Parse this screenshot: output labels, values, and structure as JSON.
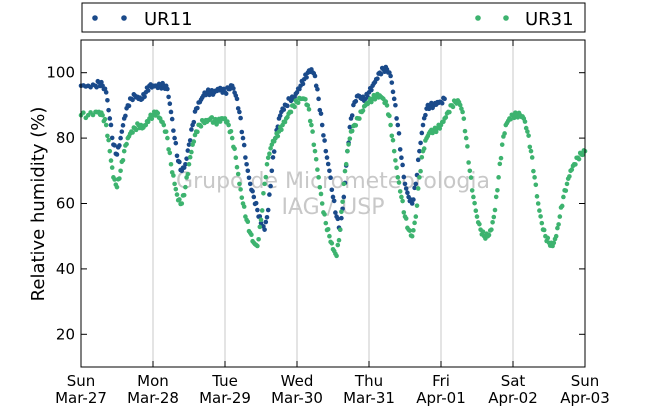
{
  "chart_data": {
    "type": "scatter",
    "ylabel": "Relative humidity (%)",
    "xlabel": "",
    "ylim": [
      10,
      110
    ],
    "yticks": [
      20,
      40,
      60,
      80,
      100
    ],
    "x_ticks": [
      {
        "day": "Sun",
        "date": "Mar-27"
      },
      {
        "day": "Mon",
        "date": "Mar-28"
      },
      {
        "day": "Tue",
        "date": "Mar-29"
      },
      {
        "day": "Wed",
        "date": "Mar-30"
      },
      {
        "day": "Thu",
        "date": "Mar-31"
      },
      {
        "day": "Fri",
        "date": "Apr-01"
      },
      {
        "day": "Sat",
        "date": "Apr-02"
      },
      {
        "day": "Sun",
        "date": "Apr-03"
      }
    ],
    "grid": "vertical",
    "legend_position": "top",
    "watermark": [
      "Grupo de Micrometeorologia",
      "IAG / USP"
    ],
    "series": [
      {
        "name": "UR11",
        "color": "#1a4a8a",
        "points": [
          [
            0.0,
            96
          ],
          [
            0.1,
            96
          ],
          [
            0.2,
            96
          ],
          [
            0.25,
            97
          ],
          [
            0.3,
            96
          ],
          [
            0.35,
            94
          ],
          [
            0.4,
            86
          ],
          [
            0.45,
            78
          ],
          [
            0.5,
            75
          ],
          [
            0.55,
            80
          ],
          [
            0.6,
            86
          ],
          [
            0.65,
            90
          ],
          [
            0.7,
            92
          ],
          [
            0.75,
            93
          ],
          [
            0.8,
            92
          ],
          [
            0.85,
            92
          ],
          [
            0.9,
            94
          ],
          [
            0.95,
            96
          ],
          [
            1.0,
            96
          ],
          [
            1.05,
            96
          ],
          [
            1.1,
            96
          ],
          [
            1.15,
            96
          ],
          [
            1.2,
            95
          ],
          [
            1.25,
            88
          ],
          [
            1.3,
            80
          ],
          [
            1.35,
            73
          ],
          [
            1.4,
            70
          ],
          [
            1.45,
            72
          ],
          [
            1.5,
            78
          ],
          [
            1.55,
            84
          ],
          [
            1.6,
            89
          ],
          [
            1.65,
            91
          ],
          [
            1.7,
            93
          ],
          [
            1.75,
            94
          ],
          [
            1.8,
            94
          ],
          [
            1.85,
            94
          ],
          [
            1.9,
            95
          ],
          [
            1.95,
            95
          ],
          [
            2.0,
            94
          ],
          [
            2.05,
            95
          ],
          [
            2.1,
            96
          ],
          [
            2.15,
            93
          ],
          [
            2.2,
            88
          ],
          [
            2.25,
            80
          ],
          [
            2.3,
            72
          ],
          [
            2.35,
            66
          ],
          [
            2.4,
            62
          ],
          [
            2.45,
            58
          ],
          [
            2.5,
            54
          ],
          [
            2.55,
            52
          ],
          [
            2.6,
            58
          ],
          [
            2.65,
            70
          ],
          [
            2.7,
            80
          ],
          [
            2.75,
            86
          ],
          [
            2.8,
            89
          ],
          [
            2.85,
            90
          ],
          [
            2.9,
            92
          ],
          [
            2.95,
            92
          ],
          [
            3.0,
            94
          ],
          [
            3.05,
            96
          ],
          [
            3.1,
            98
          ],
          [
            3.15,
            100
          ],
          [
            3.2,
            101
          ],
          [
            3.25,
            99
          ],
          [
            3.3,
            92
          ],
          [
            3.35,
            84
          ],
          [
            3.4,
            76
          ],
          [
            3.45,
            70
          ],
          [
            3.5,
            62
          ],
          [
            3.55,
            56
          ],
          [
            3.6,
            52
          ],
          [
            3.65,
            62
          ],
          [
            3.7,
            76
          ],
          [
            3.75,
            86
          ],
          [
            3.8,
            91
          ],
          [
            3.85,
            93
          ],
          [
            3.9,
            92
          ],
          [
            3.95,
            92
          ],
          [
            4.0,
            94
          ],
          [
            4.05,
            96
          ],
          [
            4.1,
            98
          ],
          [
            4.15,
            100
          ],
          [
            4.2,
            101
          ],
          [
            4.25,
            101
          ],
          [
            4.3,
            99
          ],
          [
            4.35,
            92
          ],
          [
            4.4,
            84
          ],
          [
            4.45,
            74
          ],
          [
            4.5,
            66
          ],
          [
            4.55,
            62
          ],
          [
            4.6,
            60
          ],
          [
            4.65,
            66
          ],
          [
            4.7,
            76
          ],
          [
            4.75,
            84
          ],
          [
            4.8,
            89
          ],
          [
            4.85,
            90
          ],
          [
            4.9,
            90
          ],
          [
            4.95,
            91
          ],
          [
            5.0,
            91
          ],
          [
            5.05,
            92
          ]
        ]
      },
      {
        "name": "UR31",
        "color": "#3db36f",
        "points": [
          [
            0.0,
            87
          ],
          [
            0.1,
            87
          ],
          [
            0.2,
            88
          ],
          [
            0.25,
            88
          ],
          [
            0.3,
            87
          ],
          [
            0.35,
            84
          ],
          [
            0.4,
            76
          ],
          [
            0.45,
            68
          ],
          [
            0.5,
            65
          ],
          [
            0.55,
            70
          ],
          [
            0.6,
            76
          ],
          [
            0.65,
            80
          ],
          [
            0.7,
            82
          ],
          [
            0.75,
            83
          ],
          [
            0.8,
            84
          ],
          [
            0.85,
            83
          ],
          [
            0.9,
            84
          ],
          [
            0.95,
            86
          ],
          [
            1.0,
            87
          ],
          [
            1.05,
            88
          ],
          [
            1.1,
            86
          ],
          [
            1.15,
            84
          ],
          [
            1.2,
            80
          ],
          [
            1.25,
            72
          ],
          [
            1.3,
            66
          ],
          [
            1.35,
            61
          ],
          [
            1.4,
            60
          ],
          [
            1.45,
            65
          ],
          [
            1.5,
            72
          ],
          [
            1.55,
            78
          ],
          [
            1.6,
            82
          ],
          [
            1.65,
            84
          ],
          [
            1.7,
            85
          ],
          [
            1.75,
            85
          ],
          [
            1.8,
            86
          ],
          [
            1.85,
            85
          ],
          [
            1.9,
            85
          ],
          [
            1.95,
            86
          ],
          [
            2.0,
            86
          ],
          [
            2.05,
            84
          ],
          [
            2.1,
            80
          ],
          [
            2.15,
            74
          ],
          [
            2.2,
            66
          ],
          [
            2.25,
            60
          ],
          [
            2.3,
            55
          ],
          [
            2.35,
            51
          ],
          [
            2.4,
            48
          ],
          [
            2.45,
            47
          ],
          [
            2.5,
            55
          ],
          [
            2.55,
            66
          ],
          [
            2.6,
            74
          ],
          [
            2.65,
            78
          ],
          [
            2.7,
            80
          ],
          [
            2.75,
            82
          ],
          [
            2.8,
            84
          ],
          [
            2.85,
            86
          ],
          [
            2.9,
            88
          ],
          [
            2.95,
            90
          ],
          [
            3.0,
            91
          ],
          [
            3.05,
            92
          ],
          [
            3.1,
            92
          ],
          [
            3.15,
            90
          ],
          [
            3.2,
            84
          ],
          [
            3.25,
            76
          ],
          [
            3.3,
            68
          ],
          [
            3.35,
            60
          ],
          [
            3.4,
            54
          ],
          [
            3.45,
            50
          ],
          [
            3.5,
            46
          ],
          [
            3.55,
            44
          ],
          [
            3.6,
            52
          ],
          [
            3.65,
            66
          ],
          [
            3.7,
            76
          ],
          [
            3.75,
            82
          ],
          [
            3.8,
            84
          ],
          [
            3.85,
            86
          ],
          [
            3.9,
            88
          ],
          [
            3.95,
            90
          ],
          [
            4.0,
            91
          ],
          [
            4.05,
            92
          ],
          [
            4.1,
            93
          ],
          [
            4.15,
            93
          ],
          [
            4.2,
            92
          ],
          [
            4.25,
            90
          ],
          [
            4.3,
            84
          ],
          [
            4.35,
            76
          ],
          [
            4.4,
            68
          ],
          [
            4.45,
            62
          ],
          [
            4.5,
            56
          ],
          [
            4.55,
            52
          ],
          [
            4.6,
            50
          ],
          [
            4.65,
            56
          ],
          [
            4.7,
            68
          ],
          [
            4.75,
            76
          ],
          [
            4.8,
            80
          ],
          [
            4.85,
            82
          ],
          [
            4.9,
            82
          ],
          [
            4.95,
            83
          ],
          [
            5.0,
            84
          ],
          [
            5.05,
            86
          ],
          [
            5.1,
            88
          ],
          [
            5.15,
            90
          ],
          [
            5.2,
            91
          ],
          [
            5.25,
            91
          ],
          [
            5.3,
            88
          ],
          [
            5.35,
            80
          ],
          [
            5.4,
            70
          ],
          [
            5.45,
            62
          ],
          [
            5.5,
            56
          ],
          [
            5.55,
            52
          ],
          [
            5.6,
            50
          ],
          [
            5.65,
            50
          ],
          [
            5.7,
            52
          ],
          [
            5.75,
            58
          ],
          [
            5.8,
            68
          ],
          [
            5.85,
            78
          ],
          [
            5.9,
            84
          ],
          [
            5.95,
            86
          ],
          [
            6.0,
            87
          ],
          [
            6.05,
            87
          ],
          [
            6.1,
            87
          ],
          [
            6.15,
            86
          ],
          [
            6.2,
            82
          ],
          [
            6.25,
            76
          ],
          [
            6.3,
            68
          ],
          [
            6.35,
            60
          ],
          [
            6.4,
            54
          ],
          [
            6.45,
            50
          ],
          [
            6.5,
            48
          ],
          [
            6.55,
            47
          ],
          [
            6.6,
            50
          ],
          [
            6.65,
            56
          ],
          [
            6.7,
            62
          ],
          [
            6.75,
            66
          ],
          [
            6.8,
            70
          ],
          [
            6.85,
            72
          ],
          [
            6.9,
            74
          ],
          [
            6.95,
            75
          ],
          [
            7.0,
            76
          ]
        ]
      }
    ]
  }
}
